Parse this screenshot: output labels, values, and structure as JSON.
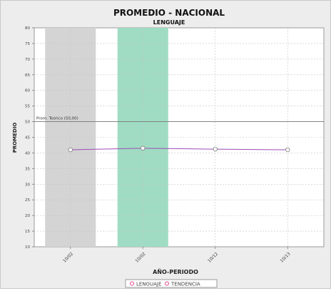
{
  "chart_data": {
    "type": "line",
    "title": "PROMEDIO - NACIONAL",
    "subtitle": "LENGUAJE",
    "xlabel": "AÑO-PERIODO",
    "ylabel": "PROMEDIO",
    "categories": [
      "10/02",
      "10/02",
      "10/12",
      "10/13"
    ],
    "series": [
      {
        "name": "LENGUAJE",
        "values": [
          41,
          41.5,
          41.2,
          41
        ],
        "color": "#6b5bd6"
      }
    ],
    "trend_legend_label": "TENDENCIA",
    "trend_color": "#e0458a",
    "reference_line": {
      "label": "Prom. Teórico (50,00)",
      "value": 50
    },
    "ylim": [
      10,
      80
    ],
    "yticks": [
      10,
      15,
      20,
      25,
      30,
      35,
      40,
      45,
      50,
      55,
      60,
      65,
      70,
      75,
      80
    ],
    "highlight_bands": [
      {
        "category_index": 0,
        "color": "#d4d4d4"
      },
      {
        "category_index": 1,
        "color": "#9fdcc3"
      }
    ],
    "grid": true,
    "legend_position": "bottom-center"
  }
}
